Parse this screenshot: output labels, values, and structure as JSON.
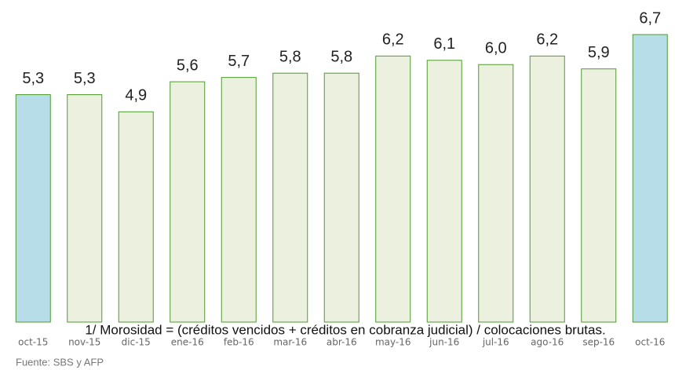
{
  "chart_data": {
    "type": "bar",
    "categories": [
      "oct-15",
      "nov-15",
      "dic-15",
      "ene-16",
      "feb-16",
      "mar-16",
      "abr-16",
      "may-16",
      "jun-16",
      "jul-16",
      "ago-16",
      "sep-16",
      "oct-16"
    ],
    "values": [
      5.3,
      5.3,
      4.9,
      5.6,
      5.7,
      5.8,
      5.8,
      6.2,
      6.1,
      6.0,
      6.2,
      5.9,
      6.7
    ],
    "value_labels": [
      "5,3",
      "5,3",
      "4,9",
      "5,6",
      "5,7",
      "5,8",
      "5,8",
      "6,2",
      "6,1",
      "6,0",
      "6,2",
      "5,9",
      "6,7"
    ],
    "colors": [
      "#b7dde8",
      "#ebf1de",
      "#ebf1de",
      "#ebf1de",
      "#ebf1de",
      "#ebf1de",
      "#ebf1de",
      "#ebf1de",
      "#ebf1de",
      "#ebf1de",
      "#ebf1de",
      "#ebf1de",
      "#b7dde8"
    ],
    "edgecolor": "#4e9a2f",
    "footnote": "1/ Morosidad = (créditos vencidos + créditos en cobranza judicial) / colocaciones brutas.",
    "source": "Fuente: SBS y AFP"
  }
}
